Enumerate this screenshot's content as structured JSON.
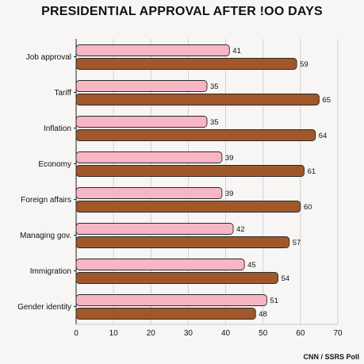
{
  "title": "PRESIDENTIAL APPROVAL AFTER !OO DAYS",
  "source": "CNN / SSRS Poll",
  "colors": {
    "series_a": "#f7b6c4",
    "series_b": "#a0582a",
    "stroke": "#2a2a2a",
    "grid": "#c8c8c8",
    "background": "#f7f6f4"
  },
  "chart_data": {
    "type": "bar",
    "orientation": "horizontal",
    "title": "PRESIDENTIAL APPROVAL AFTER !OO DAYS",
    "categories": [
      "Job approval",
      "Tariff",
      "Inflation",
      "Economy",
      "Foreign affairs",
      "Managing gov.",
      "Immigration",
      "Gender identity"
    ],
    "series": [
      {
        "color": "#f7b6c4",
        "values": [
          41,
          35,
          35,
          39,
          39,
          42,
          45,
          51
        ]
      },
      {
        "color": "#a0582a",
        "values": [
          59,
          65,
          64,
          61,
          60,
          57,
          54,
          48
        ]
      }
    ],
    "xlim": [
      0,
      70
    ],
    "xticks": [
      0,
      10,
      20,
      30,
      40,
      50,
      60,
      70
    ],
    "grid": true,
    "legend": "none"
  }
}
